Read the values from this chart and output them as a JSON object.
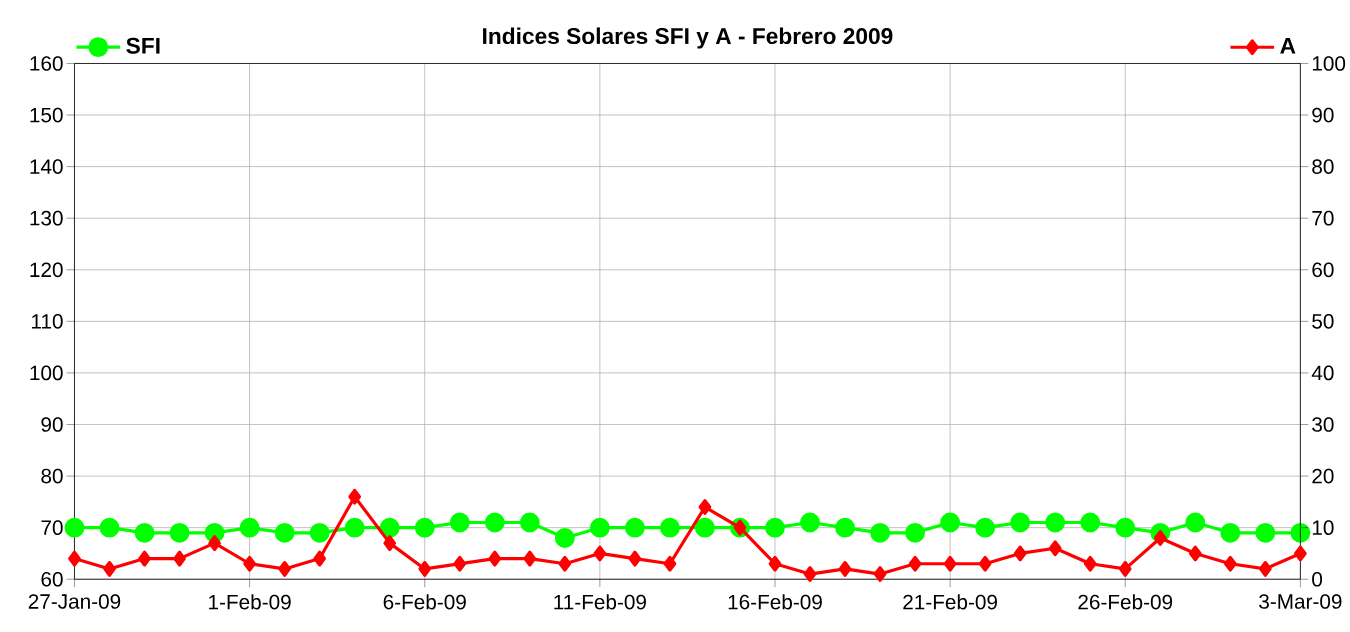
{
  "chart_data": {
    "type": "line",
    "title": "Indices Solares SFI y A - Febrero 2009",
    "x": [
      "2009-01-27",
      "2009-01-28",
      "2009-01-29",
      "2009-01-30",
      "2009-01-31",
      "2009-02-01",
      "2009-02-02",
      "2009-02-03",
      "2009-02-04",
      "2009-02-05",
      "2009-02-06",
      "2009-02-07",
      "2009-02-08",
      "2009-02-09",
      "2009-02-10",
      "2009-02-11",
      "2009-02-12",
      "2009-02-13",
      "2009-02-14",
      "2009-02-15",
      "2009-02-16",
      "2009-02-17",
      "2009-02-18",
      "2009-02-19",
      "2009-02-20",
      "2009-02-21",
      "2009-02-22",
      "2009-02-23",
      "2009-02-24",
      "2009-02-25",
      "2009-02-26",
      "2009-02-27",
      "2009-02-28",
      "2009-03-01",
      "2009-03-02",
      "2009-03-03"
    ],
    "series": [
      {
        "name": "SFI",
        "color": "#00ff00",
        "marker": "circle",
        "values": [
          70,
          70,
          69,
          69,
          69,
          70,
          69,
          69,
          70,
          70,
          70,
          71,
          71,
          71,
          68,
          70,
          70,
          70,
          70,
          70,
          70,
          71,
          70,
          69,
          69,
          71,
          70,
          71,
          71,
          71,
          70,
          69,
          71,
          69,
          69,
          69
        ]
      },
      {
        "name": "A",
        "color": "#ff0000",
        "marker": "diamond",
        "axis": "y2",
        "values": [
          4,
          2,
          4,
          4,
          7,
          3,
          2,
          4,
          16,
          7,
          2,
          3,
          4,
          4,
          3,
          5,
          4,
          3,
          14,
          10,
          3,
          1,
          2,
          1,
          3,
          3,
          3,
          5,
          6,
          3,
          2,
          8,
          5,
          3,
          2,
          5
        ]
      }
    ],
    "xlim": [
      "2009-01-27",
      "2009-03-03"
    ],
    "xticks": [
      {
        "value": "2009-01-27",
        "label": "27-Jan-09"
      },
      {
        "value": "2009-02-01",
        "label": "1-Feb-09"
      },
      {
        "value": "2009-02-06",
        "label": "6-Feb-09"
      },
      {
        "value": "2009-02-11",
        "label": "11-Feb-09"
      },
      {
        "value": "2009-02-16",
        "label": "16-Feb-09"
      },
      {
        "value": "2009-02-21",
        "label": "21-Feb-09"
      },
      {
        "value": "2009-02-26",
        "label": "26-Feb-09"
      },
      {
        "value": "2009-03-03",
        "label": "3-Mar-09"
      }
    ],
    "ylim": [
      60,
      160
    ],
    "yticks": [
      60,
      70,
      80,
      90,
      100,
      110,
      120,
      130,
      140,
      150,
      160
    ],
    "y2lim": [
      0,
      100
    ],
    "y2ticks": [
      0,
      10,
      20,
      30,
      40,
      50,
      60,
      70,
      80,
      90,
      100
    ],
    "grid": true,
    "legend": "top",
    "line_style": "solid"
  }
}
